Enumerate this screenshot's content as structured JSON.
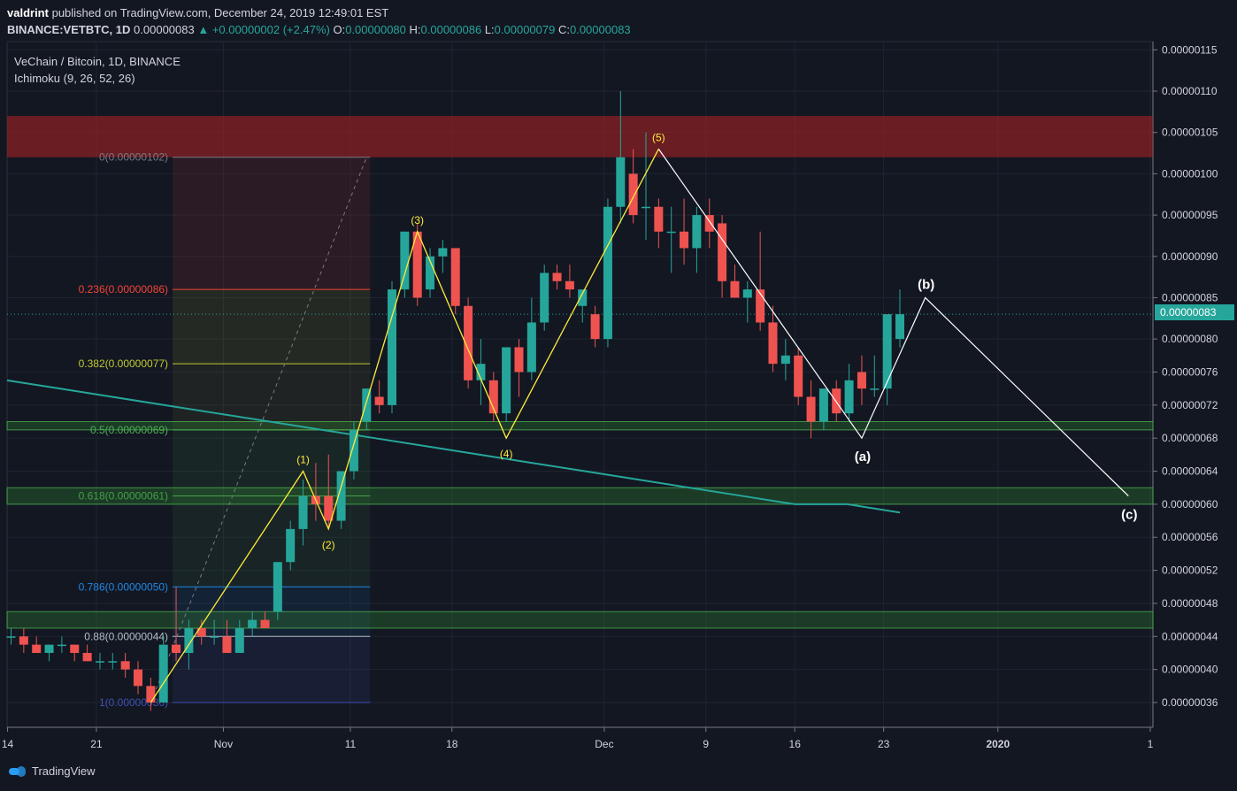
{
  "header": {
    "author": "valdrint",
    "published": "published on TradingView.com, December 24, 2019 12:49:01 EST",
    "symbol_line": "BINANCE:VETBTC, 1D",
    "last": "0.00000083",
    "change": "+0.00000002 (+2.47%)",
    "o_label": "O:",
    "o": "0.00000080",
    "h_label": "H:",
    "h": "0.00000086",
    "l_label": "L:",
    "l": "0.00000079",
    "c_label": "C:",
    "c": "0.00000083"
  },
  "legend": {
    "title": "VeChain / Bitcoin, 1D, BINANCE",
    "indicator": "Ichimoku (9, 26, 52, 26)"
  },
  "price_tag": "0.00000083",
  "footer": {
    "brand": "TradingView"
  },
  "colors": {
    "background": "#131722",
    "up": "#26a69a",
    "down": "#ef5350",
    "wave": "#ffeb3b",
    "projection": "#ffffff",
    "ichimoku": "#26a69a",
    "resistance_zone": "#8b1a1f",
    "support_zone": "#1b5e20"
  },
  "chart_data": {
    "type": "candlestick",
    "y_unit": "BTC",
    "ylim": [
      3.3e-07,
      1.16e-06
    ],
    "y_ticks": [
      "0.00000115",
      "0.00000110",
      "0.00000105",
      "0.00000100",
      "0.00000095",
      "0.00000090",
      "0.00000085",
      "0.00000080",
      "0.00000076",
      "0.00000072",
      "0.00000068",
      "0.00000064",
      "0.00000060",
      "0.00000056",
      "0.00000052",
      "0.00000048",
      "0.00000044",
      "0.00000040",
      "0.00000036"
    ],
    "x_ticks": [
      "14",
      "21",
      "Nov",
      "11",
      "18",
      "Dec",
      "9",
      "16",
      "23",
      "2020",
      "1"
    ],
    "grid": true,
    "candles": [
      [
        4.4e-07,
        4.5e-07,
        4.3e-07,
        4.4e-07
      ],
      [
        4.4e-07,
        4.5e-07,
        4.2e-07,
        4.3e-07
      ],
      [
        4.3e-07,
        4.4e-07,
        4.2e-07,
        4.2e-07
      ],
      [
        4.2e-07,
        4.3e-07,
        4.1e-07,
        4.3e-07
      ],
      [
        4.3e-07,
        4.4e-07,
        4.2e-07,
        4.3e-07
      ],
      [
        4.3e-07,
        4.3e-07,
        4.1e-07,
        4.2e-07
      ],
      [
        4.2e-07,
        4.3e-07,
        4.1e-07,
        4.1e-07
      ],
      [
        4.1e-07,
        4.2e-07,
        4e-07,
        4.1e-07
      ],
      [
        4.1e-07,
        4.2e-07,
        4e-07,
        4.1e-07
      ],
      [
        4.1e-07,
        4.2e-07,
        3.9e-07,
        4e-07
      ],
      [
        4e-07,
        4.1e-07,
        3.7e-07,
        3.8e-07
      ],
      [
        3.8e-07,
        3.9e-07,
        3.5e-07,
        3.6e-07
      ],
      [
        3.6e-07,
        4.4e-07,
        3.6e-07,
        4.3e-07
      ],
      [
        4.3e-07,
        5e-07,
        4.1e-07,
        4.2e-07
      ],
      [
        4.2e-07,
        4.6e-07,
        4e-07,
        4.5e-07
      ],
      [
        4.5e-07,
        4.6e-07,
        4.3e-07,
        4.4e-07
      ],
      [
        4.4e-07,
        4.6e-07,
        4.3e-07,
        4.4e-07
      ],
      [
        4.4e-07,
        4.6e-07,
        4.2e-07,
        4.2e-07
      ],
      [
        4.2e-07,
        4.6e-07,
        4.2e-07,
        4.5e-07
      ],
      [
        4.5e-07,
        4.7e-07,
        4.4e-07,
        4.6e-07
      ],
      [
        4.6e-07,
        4.7e-07,
        4.5e-07,
        4.5e-07
      ],
      [
        4.7e-07,
        5.3e-07,
        4.6e-07,
        5.3e-07
      ],
      [
        5.3e-07,
        5.8e-07,
        5.2e-07,
        5.7e-07
      ],
      [
        5.7e-07,
        6.3e-07,
        5.5e-07,
        6.1e-07
      ],
      [
        6.1e-07,
        6.5e-07,
        5.8e-07,
        6e-07
      ],
      [
        6.1e-07,
        6.6e-07,
        5.7e-07,
        5.8e-07
      ],
      [
        5.8e-07,
        6.4e-07,
        5.7e-07,
        6.4e-07
      ],
      [
        6.4e-07,
        7e-07,
        6.3e-07,
        6.9e-07
      ],
      [
        7e-07,
        7.4e-07,
        6.9e-07,
        7.4e-07
      ],
      [
        7.3e-07,
        7.5e-07,
        7.1e-07,
        7.2e-07
      ],
      [
        7.2e-07,
        8.7e-07,
        7.1e-07,
        8.6e-07
      ],
      [
        8.6e-07,
        9.3e-07,
        8.5e-07,
        9.3e-07
      ],
      [
        9.3e-07,
        9.4e-07,
        8.4e-07,
        8.5e-07
      ],
      [
        8.6e-07,
        9.1e-07,
        8.5e-07,
        9e-07
      ],
      [
        9e-07,
        9.2e-07,
        8.8e-07,
        9.1e-07
      ],
      [
        9.1e-07,
        9.1e-07,
        8.3e-07,
        8.4e-07
      ],
      [
        8.4e-07,
        8.5e-07,
        7.4e-07,
        7.5e-07
      ],
      [
        7.5e-07,
        8e-07,
        7.2e-07,
        7.7e-07
      ],
      [
        7.5e-07,
        7.6e-07,
        7e-07,
        7.1e-07
      ],
      [
        7.1e-07,
        7.9e-07,
        7e-07,
        7.9e-07
      ],
      [
        7.9e-07,
        8e-07,
        7.3e-07,
        7.6e-07
      ],
      [
        7.6e-07,
        8.5e-07,
        7.5e-07,
        8.2e-07
      ],
      [
        8.2e-07,
        8.9e-07,
        8.1e-07,
        8.8e-07
      ],
      [
        8.8e-07,
        8.9e-07,
        8.6e-07,
        8.7e-07
      ],
      [
        8.7e-07,
        8.9e-07,
        8.5e-07,
        8.6e-07
      ],
      [
        8.4e-07,
        8.6e-07,
        8.2e-07,
        8.6e-07
      ],
      [
        8.3e-07,
        8.4e-07,
        7.9e-07,
        8e-07
      ],
      [
        8e-07,
        9.7e-07,
        7.9e-07,
        9.6e-07
      ],
      [
        9.6e-07,
        1.1e-06,
        9.4e-07,
        1.02e-06
      ],
      [
        1e-06,
        1.03e-06,
        9.4e-07,
        9.5e-07
      ],
      [
        9.6e-07,
        1.05e-06,
        9.2e-07,
        9.6e-07
      ],
      [
        9.6e-07,
        9.7e-07,
        9.1e-07,
        9.3e-07
      ],
      [
        9.3e-07,
        9.6e-07,
        8.8e-07,
        9.3e-07
      ],
      [
        9.3e-07,
        9.7e-07,
        8.9e-07,
        9.1e-07
      ],
      [
        9.1e-07,
        9.6e-07,
        8.8e-07,
        9.5e-07
      ],
      [
        9.5e-07,
        9.7e-07,
        9.1e-07,
        9.3e-07
      ],
      [
        9.4e-07,
        9.5e-07,
        8.5e-07,
        8.7e-07
      ],
      [
        8.7e-07,
        8.9e-07,
        8.5e-07,
        8.5e-07
      ],
      [
        8.5e-07,
        8.7e-07,
        8.2e-07,
        8.6e-07
      ],
      [
        8.6e-07,
        9.3e-07,
        8.1e-07,
        8.2e-07
      ],
      [
        8.2e-07,
        8.4e-07,
        7.6e-07,
        7.7e-07
      ],
      [
        7.7e-07,
        8e-07,
        7.5e-07,
        7.8e-07
      ],
      [
        7.8e-07,
        7.9e-07,
        7.2e-07,
        7.3e-07
      ],
      [
        7.3e-07,
        7.5e-07,
        6.8e-07,
        7e-07
      ],
      [
        7e-07,
        7.4e-07,
        6.9e-07,
        7.4e-07
      ],
      [
        7.4e-07,
        7.5e-07,
        7e-07,
        7.1e-07
      ],
      [
        7.1e-07,
        7.7e-07,
        7e-07,
        7.5e-07
      ],
      [
        7.6e-07,
        7.8e-07,
        7.2e-07,
        7.4e-07
      ],
      [
        7.4e-07,
        7.8e-07,
        7.3e-07,
        7.4e-07
      ],
      [
        7.4e-07,
        8.3e-07,
        7.2e-07,
        8.3e-07
      ],
      [
        8e-07,
        8.6e-07,
        7.9e-07,
        8.3e-07
      ]
    ],
    "ichimoku_line": [
      7.5e-07,
      7.4e-07,
      7.3e-07,
      7.2e-07,
      7.1e-07,
      7e-07,
      6.9e-07,
      6.8e-07,
      6.7e-07,
      6.6e-07,
      6.5e-07,
      6.4e-07,
      6.3e-07,
      6.2e-07,
      6.1e-07,
      6e-07,
      6e-07,
      5.9e-07
    ],
    "zones": [
      {
        "name": "resistance",
        "from": 1.02e-06,
        "to": 1.07e-06
      },
      {
        "name": "support-upper",
        "from": 6.9e-07,
        "to": 7e-07
      },
      {
        "name": "support-middle",
        "from": 6e-07,
        "to": 6.2e-07
      },
      {
        "name": "support-lower",
        "from": 4.5e-07,
        "to": 4.7e-07
      }
    ],
    "fib_levels": [
      {
        "label": "0(0.00000102)",
        "value": 1.02e-06,
        "color": "#787b86"
      },
      {
        "label": "0.236(0.00000086)",
        "value": 8.6e-07,
        "color": "#f44336"
      },
      {
        "label": "0.382(0.00000077)",
        "value": 7.7e-07,
        "color": "#c0ca33"
      },
      {
        "label": "0.5(0.00000069)",
        "value": 6.9e-07,
        "color": "#4caf50"
      },
      {
        "label": "0.618(0.00000061)",
        "value": 6.1e-07,
        "color": "#43a047"
      },
      {
        "label": "0.786(0.00000050)",
        "value": 5e-07,
        "color": "#1e88e5"
      },
      {
        "label": "0.88(0.00000044)",
        "value": 4.4e-07,
        "color": "#b0bec5"
      },
      {
        "label": "1(0.00000036)",
        "value": 3.6e-07,
        "color": "#3f51b5"
      }
    ],
    "wave_labels": [
      "(1)",
      "(2)",
      "(3)",
      "(4)",
      "(5)"
    ],
    "abc_labels": [
      "(a)",
      "(b)",
      "(c)"
    ],
    "wave_points": [
      {
        "label": "",
        "bar": 11,
        "y": 3.6e-07
      },
      {
        "label": "(1)",
        "bar": 23,
        "y": 6.4e-07
      },
      {
        "label": "(2)",
        "bar": 25,
        "y": 5.7e-07
      },
      {
        "label": "(3)",
        "bar": 32,
        "y": 9.3e-07
      },
      {
        "label": "(4)",
        "bar": 39,
        "y": 6.8e-07
      },
      {
        "label": "(5)",
        "bar": 51,
        "y": 1.03e-06
      }
    ],
    "abc_points": [
      {
        "label": "",
        "bar": 51,
        "y": 1.03e-06
      },
      {
        "label": "(a)",
        "bar": 67,
        "y": 6.8e-07
      },
      {
        "label": "(b)",
        "bar": 72,
        "y": 8.5e-07
      },
      {
        "label": "(c)",
        "bar": 88,
        "y": 6.1e-07
      }
    ]
  }
}
